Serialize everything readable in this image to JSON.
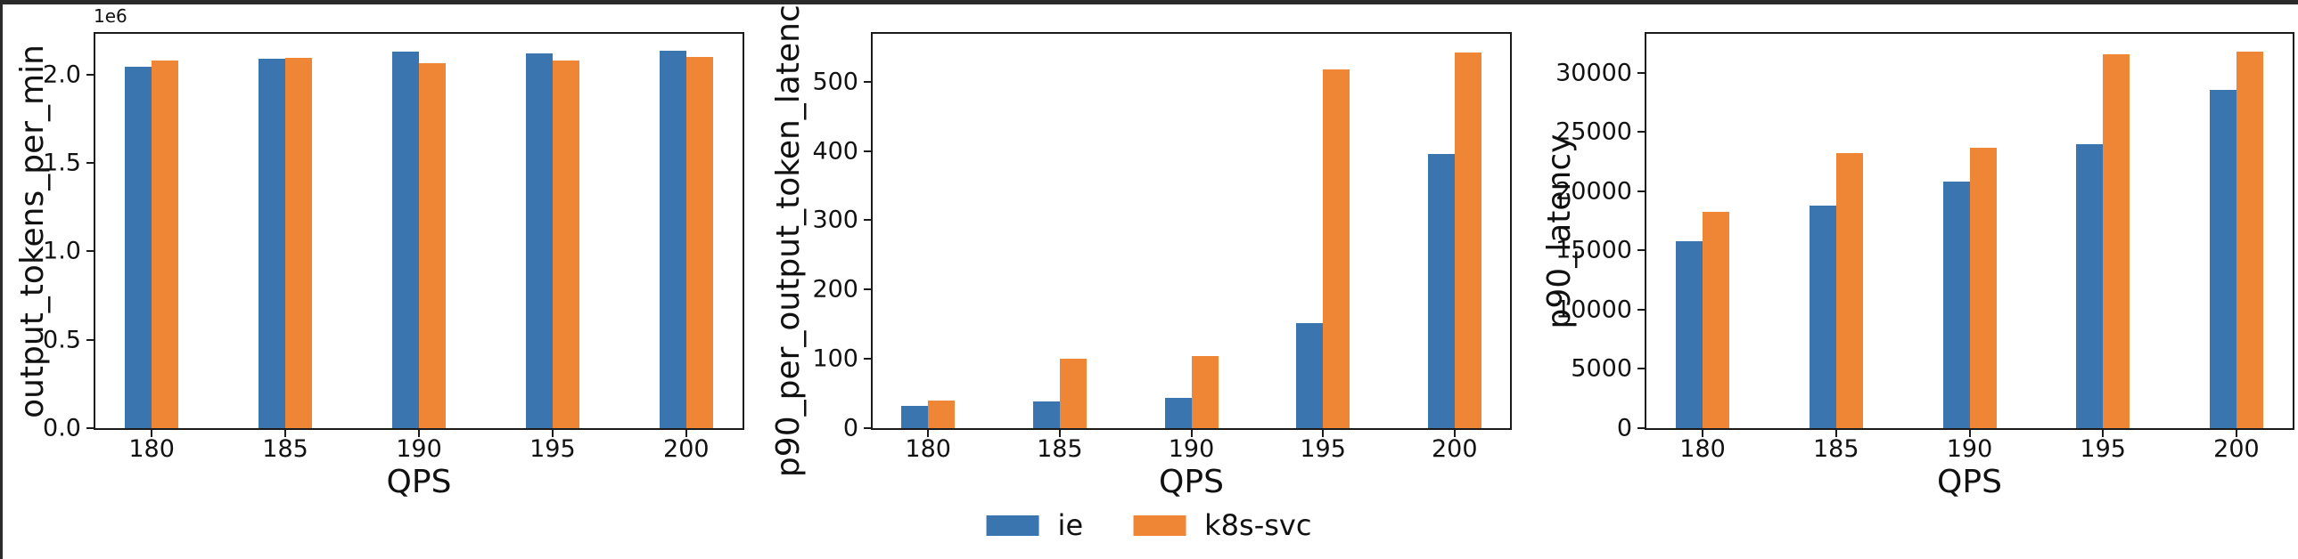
{
  "figure": {
    "background": "#ffffff",
    "frame_color": "#2b2b2b",
    "spine_color": "#1a1a1a"
  },
  "legend": {
    "position": "bottom-center",
    "items": [
      {
        "label": "ie",
        "color": "#3b75af"
      },
      {
        "label": "k8s-svc",
        "color": "#ef8636"
      }
    ]
  },
  "chart_data": [
    {
      "type": "bar",
      "title": "",
      "ylabel": "output_tokens_per_min",
      "xlabel": "QPS",
      "offset_text": "1e6",
      "grid": false,
      "categories": [
        "180",
        "185",
        "190",
        "195",
        "200"
      ],
      "ylim": [
        0,
        2230000
      ],
      "yticks": [
        {
          "value": 0,
          "label": "0.0"
        },
        {
          "value": 500000,
          "label": "0.5"
        },
        {
          "value": 1000000,
          "label": "1.0"
        },
        {
          "value": 1500000,
          "label": "1.5"
        },
        {
          "value": 2000000,
          "label": "2.0"
        }
      ],
      "series": [
        {
          "name": "ie",
          "color": "#3b75af",
          "values": [
            2045000,
            2090000,
            2130000,
            2120000,
            2135000
          ]
        },
        {
          "name": "k8s-svc",
          "color": "#ef8636",
          "values": [
            2080000,
            2095000,
            2065000,
            2080000,
            2100000
          ]
        }
      ]
    },
    {
      "type": "bar",
      "title": "",
      "ylabel": "p90_per_output_token_latency",
      "xlabel": "QPS",
      "offset_text": "",
      "grid": false,
      "categories": [
        "180",
        "185",
        "190",
        "195",
        "200"
      ],
      "ylim": [
        0,
        569
      ],
      "yticks": [
        {
          "value": 0,
          "label": "0"
        },
        {
          "value": 100,
          "label": "100"
        },
        {
          "value": 200,
          "label": "200"
        },
        {
          "value": 300,
          "label": "300"
        },
        {
          "value": 400,
          "label": "400"
        },
        {
          "value": 500,
          "label": "500"
        }
      ],
      "series": [
        {
          "name": "ie",
          "color": "#3b75af",
          "values": [
            32,
            38,
            44,
            152,
            396
          ]
        },
        {
          "name": "k8s-svc",
          "color": "#ef8636",
          "values": [
            40,
            100,
            104,
            518,
            542
          ]
        }
      ]
    },
    {
      "type": "bar",
      "title": "",
      "ylabel": "p90_latency",
      "xlabel": "QPS",
      "offset_text": "",
      "grid": false,
      "categories": [
        "180",
        "185",
        "190",
        "195",
        "200"
      ],
      "ylim": [
        0,
        33300
      ],
      "yticks": [
        {
          "value": 0,
          "label": "0"
        },
        {
          "value": 5000,
          "label": "5000"
        },
        {
          "value": 10000,
          "label": "10000"
        },
        {
          "value": 15000,
          "label": "15000"
        },
        {
          "value": 20000,
          "label": "20000"
        },
        {
          "value": 25000,
          "label": "25000"
        },
        {
          "value": 30000,
          "label": "30000"
        }
      ],
      "series": [
        {
          "name": "ie",
          "color": "#3b75af",
          "values": [
            15800,
            18800,
            20800,
            24000,
            28600
          ]
        },
        {
          "name": "k8s-svc",
          "color": "#ef8636",
          "values": [
            18300,
            23200,
            23700,
            31600,
            31800
          ]
        }
      ]
    }
  ]
}
